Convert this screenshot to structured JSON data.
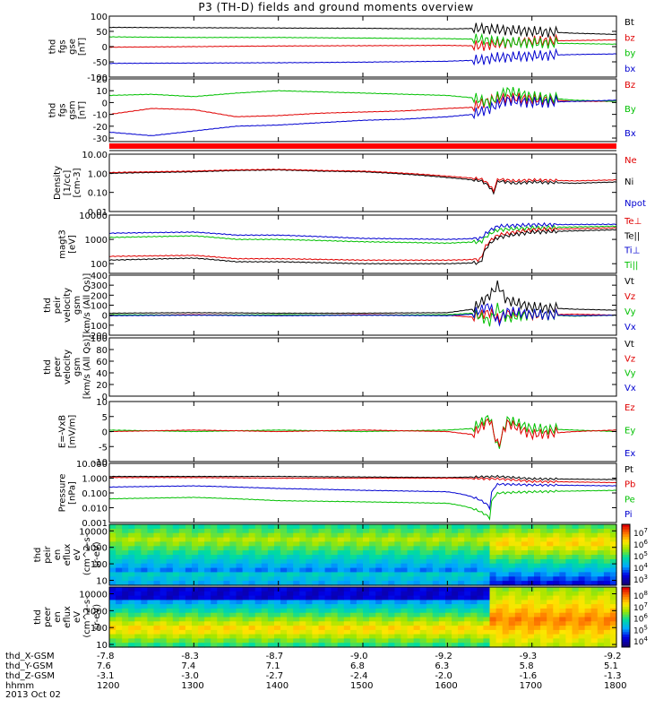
{
  "title": "P3 (TH-D) fields and ground moments overview",
  "date_label": "2013 Oct 02",
  "colors": {
    "black": "#000000",
    "red": "#e00000",
    "green": "#00c000",
    "blue": "#0000d0",
    "orbit_bar": "#ff0000"
  },
  "chart_data": [
    {
      "type": "line",
      "id": "fgs-gse",
      "ylabel": [
        "thd",
        "fgs",
        "gse",
        "[nT]"
      ],
      "yticks": [
        "100",
        "50",
        "0",
        "-50",
        "-100"
      ],
      "ylim": [
        -100,
        100
      ],
      "legend": [
        {
          "name": "Bt",
          "color": "#000000"
        },
        {
          "name": "bz",
          "color": "#e00000"
        },
        {
          "name": "by",
          "color": "#00c000"
        },
        {
          "name": "bx",
          "color": "#0000d0"
        }
      ],
      "series": [
        {
          "name": "Bt",
          "color": "#000000",
          "x": [
            12.0,
            13.0,
            14.0,
            15.0,
            16.0,
            16.4,
            16.6,
            17.0,
            17.5,
            18.0
          ],
          "y": [
            63,
            62,
            61,
            60,
            58,
            60,
            56,
            50,
            44,
            40
          ]
        },
        {
          "name": "bz",
          "color": "#e00000",
          "x": [
            12.0,
            13.0,
            14.0,
            15.0,
            16.0,
            16.4,
            16.6,
            17.0,
            17.5,
            18.0
          ],
          "y": [
            -2,
            0,
            2,
            3,
            4,
            2,
            10,
            18,
            20,
            22
          ]
        },
        {
          "name": "by",
          "color": "#00c000",
          "x": [
            12.0,
            13.0,
            14.0,
            15.0,
            16.0,
            16.4,
            16.6,
            17.0,
            17.5,
            18.0
          ],
          "y": [
            32,
            30,
            30,
            28,
            26,
            24,
            16,
            12,
            10,
            8
          ]
        },
        {
          "name": "bx",
          "color": "#0000d0",
          "x": [
            12.0,
            13.0,
            14.0,
            15.0,
            16.0,
            16.4,
            16.6,
            17.0,
            17.5,
            18.0
          ],
          "y": [
            -55,
            -54,
            -53,
            -51,
            -48,
            -44,
            -36,
            -30,
            -26,
            -24
          ]
        }
      ]
    },
    {
      "type": "line",
      "id": "fgs-gsm",
      "ylabel": [
        "thd",
        "fgs",
        "gsm",
        "[nT]"
      ],
      "yticks": [
        "20",
        "10",
        "0",
        "-10",
        "-20",
        "-30"
      ],
      "ylim": [
        -33,
        20
      ],
      "legend": [
        {
          "name": "Bz",
          "color": "#e00000"
        },
        {
          "name": "By",
          "color": "#00c000"
        },
        {
          "name": "Bx",
          "color": "#0000d0"
        }
      ],
      "series": [
        {
          "name": "Bz",
          "color": "#e00000",
          "x": [
            12.0,
            12.5,
            13.0,
            13.5,
            14.0,
            14.5,
            15.0,
            15.5,
            16.0,
            16.3,
            16.5,
            16.7,
            17.0,
            17.5,
            18.0
          ],
          "y": [
            -10,
            -5,
            -6,
            -12,
            -11,
            -9,
            -8,
            -7,
            -5,
            -4,
            2,
            4,
            3,
            1,
            1
          ]
        },
        {
          "name": "By",
          "color": "#00c000",
          "x": [
            12.0,
            12.5,
            13.0,
            13.5,
            14.0,
            14.5,
            15.0,
            15.5,
            16.0,
            16.3,
            16.5,
            16.7,
            17.0,
            17.5,
            18.0
          ],
          "y": [
            6,
            7,
            5,
            8,
            10,
            9,
            8,
            7,
            6,
            4,
            0,
            10,
            5,
            2,
            1
          ]
        },
        {
          "name": "Bx",
          "color": "#0000d0",
          "x": [
            12.0,
            12.5,
            13.0,
            13.5,
            14.0,
            14.5,
            15.0,
            15.5,
            16.0,
            16.3,
            16.5,
            16.7,
            17.0,
            17.5,
            18.0
          ],
          "y": [
            -25,
            -28,
            -24,
            -20,
            -19,
            -17,
            -15,
            -14,
            -12,
            -10,
            -5,
            2,
            0,
            1,
            2
          ]
        }
      ]
    },
    {
      "type": "line",
      "id": "density",
      "scale": "log",
      "ylabel": [
        "Density",
        "[1/cc]",
        "[cm-3]"
      ],
      "yticks": [
        "10.00",
        "1.00",
        "0.10",
        "0.01"
      ],
      "ylim": [
        0.01,
        10
      ],
      "legend": [
        {
          "name": "Ne",
          "color": "#e00000"
        },
        {
          "name": "Ni",
          "color": "#000000"
        },
        {
          "name": "Npot",
          "color": "#0000d0"
        }
      ],
      "series": [
        {
          "name": "Ni",
          "color": "#000000",
          "x": [
            12.0,
            12.5,
            13.0,
            13.5,
            14.0,
            14.5,
            15.0,
            15.5,
            16.0,
            16.4,
            16.55,
            16.6,
            16.8,
            17.0,
            17.5,
            18.0
          ],
          "y": [
            1.0,
            1.1,
            1.2,
            1.4,
            1.5,
            1.3,
            1.2,
            0.9,
            0.6,
            0.4,
            0.08,
            0.4,
            0.3,
            0.35,
            0.3,
            0.35
          ]
        },
        {
          "name": "Ne",
          "color": "#e00000",
          "x": [
            12.0,
            12.5,
            13.0,
            13.5,
            14.0,
            14.5,
            15.0,
            15.5,
            16.0,
            16.4,
            16.55,
            16.6,
            16.8,
            17.0,
            17.5,
            18.0
          ],
          "y": [
            1.1,
            1.2,
            1.3,
            1.5,
            1.6,
            1.4,
            1.3,
            1.0,
            0.7,
            0.5,
            0.1,
            0.5,
            0.4,
            0.45,
            0.4,
            0.45
          ]
        }
      ]
    },
    {
      "type": "line",
      "id": "temperature",
      "scale": "log",
      "ylabel": [
        "magt3",
        "[eV]"
      ],
      "yticks": [
        "10000",
        "1000",
        "100"
      ],
      "ylim": [
        40,
        10000
      ],
      "legend": [
        {
          "name": "Te⊥",
          "color": "#e00000"
        },
        {
          "name": "Te||",
          "color": "#000000"
        },
        {
          "name": "Ti⊥",
          "color": "#0000d0"
        },
        {
          "name": "Ti||",
          "color": "#00c000"
        }
      ],
      "series": [
        {
          "name": "Ti⊥",
          "color": "#0000d0",
          "x": [
            12.0,
            13.0,
            13.5,
            14.0,
            15.0,
            16.0,
            16.4,
            16.6,
            17.0,
            18.0
          ],
          "y": [
            1800,
            2000,
            1500,
            1500,
            1100,
            1000,
            1100,
            3500,
            4000,
            4200
          ]
        },
        {
          "name": "Ti||",
          "color": "#00c000",
          "x": [
            12.0,
            13.0,
            13.5,
            14.0,
            15.0,
            16.0,
            16.4,
            16.6,
            17.0,
            18.0
          ],
          "y": [
            1200,
            1400,
            1000,
            1000,
            800,
            700,
            800,
            2500,
            3000,
            3500
          ]
        },
        {
          "name": "Te⊥",
          "color": "#e00000",
          "x": [
            12.0,
            13.0,
            13.5,
            14.0,
            15.0,
            16.0,
            16.4,
            16.6,
            17.0,
            18.0
          ],
          "y": [
            200,
            220,
            160,
            160,
            140,
            140,
            150,
            1500,
            2500,
            3000
          ]
        },
        {
          "name": "Te||",
          "color": "#000000",
          "x": [
            12.0,
            13.0,
            13.5,
            14.0,
            15.0,
            16.0,
            16.4,
            16.6,
            17.0,
            18.0
          ],
          "y": [
            140,
            170,
            120,
            120,
            100,
            100,
            110,
            1200,
            2000,
            2500
          ]
        }
      ]
    },
    {
      "type": "line",
      "id": "peir-velocity",
      "ylabel": [
        "thd",
        "peir",
        "velocity",
        "gsm",
        "[km/s (All Qs)]"
      ],
      "yticks": [
        "400",
        "300",
        "200",
        "100",
        "0",
        "-100",
        "-200"
      ],
      "ylim": [
        -200,
        400
      ],
      "legend": [
        {
          "name": "Vt",
          "color": "#000000"
        },
        {
          "name": "Vz",
          "color": "#e00000"
        },
        {
          "name": "Vy",
          "color": "#00c000"
        },
        {
          "name": "Vx",
          "color": "#0000d0"
        }
      ],
      "series": [
        {
          "name": "Vt",
          "color": "#000000",
          "x": [
            12.0,
            13.0,
            14.0,
            15.0,
            16.0,
            16.3,
            16.5,
            16.6,
            16.7,
            17.0,
            17.5,
            18.0
          ],
          "y": [
            20,
            25,
            20,
            20,
            25,
            60,
            200,
            300,
            150,
            80,
            60,
            50
          ]
        },
        {
          "name": "Vz",
          "color": "#e00000",
          "x": [
            12.0,
            13.0,
            14.0,
            15.0,
            16.0,
            16.3,
            16.5,
            16.6,
            16.7,
            17.0,
            17.5,
            18.0
          ],
          "y": [
            0,
            5,
            0,
            5,
            0,
            -20,
            30,
            -40,
            20,
            0,
            10,
            0
          ]
        },
        {
          "name": "Vy",
          "color": "#00c000",
          "x": [
            12.0,
            13.0,
            14.0,
            15.0,
            16.0,
            16.3,
            16.5,
            16.6,
            16.7,
            17.0,
            17.5,
            18.0
          ],
          "y": [
            5,
            0,
            5,
            0,
            5,
            20,
            -60,
            80,
            -30,
            10,
            -10,
            0
          ]
        },
        {
          "name": "Vx",
          "color": "#0000d0",
          "x": [
            12.0,
            13.0,
            14.0,
            15.0,
            16.0,
            16.3,
            16.5,
            16.6,
            16.7,
            17.0,
            17.5,
            18.0
          ],
          "y": [
            -5,
            0,
            -5,
            0,
            -5,
            10,
            100,
            -80,
            40,
            10,
            -5,
            0
          ]
        }
      ]
    },
    {
      "type": "line",
      "id": "peer-velocity",
      "ylabel": [
        "thd",
        "peer",
        "velocity",
        "gsm",
        "[km/s (All Qs)]"
      ],
      "yticks": [
        "100",
        "80",
        "60",
        "40",
        "20",
        "0"
      ],
      "ylim": [
        0,
        100
      ],
      "legend": [
        {
          "name": "Vt",
          "color": "#000000"
        },
        {
          "name": "Vz",
          "color": "#e00000"
        },
        {
          "name": "Vy",
          "color": "#00c000"
        },
        {
          "name": "Vx",
          "color": "#0000d0"
        }
      ],
      "series": []
    },
    {
      "type": "line",
      "id": "efield",
      "ylabel": [
        "E=-VxB",
        "[mV/m]"
      ],
      "yticks": [
        "10",
        "5",
        "0",
        "-5",
        "-10"
      ],
      "ylim": [
        -10,
        10
      ],
      "legend": [
        {
          "name": "Ez",
          "color": "#e00000"
        },
        {
          "name": "Ey",
          "color": "#00c000"
        },
        {
          "name": "Ex",
          "color": "#0000d0"
        }
      ],
      "series": [
        {
          "name": "Ey",
          "color": "#00c000",
          "x": [
            12.0,
            13.0,
            14.0,
            15.0,
            16.0,
            16.3,
            16.5,
            16.6,
            16.7,
            17.0,
            17.5,
            18.0
          ],
          "y": [
            0.5,
            0,
            0.5,
            0,
            0.5,
            1,
            5,
            -6,
            4,
            1,
            0.5,
            0
          ]
        },
        {
          "name": "Ez",
          "color": "#e00000",
          "x": [
            12.0,
            13.0,
            14.0,
            15.0,
            16.0,
            16.3,
            16.5,
            16.6,
            16.7,
            17.0,
            17.5,
            18.0
          ],
          "y": [
            0,
            0.5,
            0,
            0.5,
            0,
            -1,
            4,
            -5,
            3,
            -1,
            0,
            0.5
          ]
        }
      ]
    },
    {
      "type": "line",
      "id": "pressure",
      "scale": "log",
      "ylabel": [
        "Pressure",
        "[nPa]"
      ],
      "yticks": [
        "10.000",
        "1.000",
        "0.100",
        "0.010",
        "0.001"
      ],
      "ylim": [
        0.001,
        10
      ],
      "legend": [
        {
          "name": "Pt",
          "color": "#000000"
        },
        {
          "name": "Pb",
          "color": "#e00000"
        },
        {
          "name": "Pe",
          "color": "#00c000"
        },
        {
          "name": "Pi",
          "color": "#0000d0"
        }
      ],
      "series": [
        {
          "name": "Pt",
          "color": "#000000",
          "x": [
            12.0,
            13.0,
            14.0,
            15.0,
            16.0,
            16.6,
            17.0,
            18.0
          ],
          "y": [
            1.3,
            1.3,
            1.3,
            1.2,
            1.1,
            1.3,
            0.9,
            0.8
          ]
        },
        {
          "name": "Pb",
          "color": "#e00000",
          "x": [
            12.0,
            13.0,
            14.0,
            15.0,
            16.0,
            16.6,
            17.0,
            18.0
          ],
          "y": [
            1.1,
            1.1,
            1.0,
            1.0,
            1.0,
            0.9,
            0.6,
            0.5
          ]
        },
        {
          "name": "Pi",
          "color": "#0000d0",
          "x": [
            12.0,
            13.0,
            14.0,
            15.0,
            16.0,
            16.4,
            16.5,
            16.6,
            17.0,
            18.0
          ],
          "y": [
            0.25,
            0.3,
            0.2,
            0.15,
            0.12,
            0.03,
            0.01,
            0.4,
            0.35,
            0.3
          ]
        },
        {
          "name": "Pe",
          "color": "#00c000",
          "x": [
            12.0,
            13.0,
            14.0,
            15.0,
            16.0,
            16.4,
            16.5,
            16.6,
            17.0,
            18.0
          ],
          "y": [
            0.04,
            0.05,
            0.03,
            0.025,
            0.02,
            0.005,
            0.002,
            0.1,
            0.12,
            0.15
          ]
        }
      ]
    },
    {
      "type": "heatmap",
      "id": "peir-spectrogram",
      "scale": "log",
      "ylabel": [
        "thd",
        "peir",
        "en",
        "eflux",
        "eV",
        "(cm^2-s-",
        "sr-eV)"
      ],
      "yticks": [
        "10000",
        "1000",
        "100",
        "10"
      ],
      "ylim": [
        5,
        25000
      ],
      "colorbar_ticks": [
        "10^7",
        "10^6",
        "10^5",
        "10^4",
        "10^3"
      ]
    },
    {
      "type": "heatmap",
      "id": "peer-spectrogram",
      "scale": "log",
      "ylabel": [
        "thd",
        "peer",
        "en",
        "eflux",
        "eV",
        "(cm^2-s-",
        "sr-eV)"
      ],
      "yticks": [
        "10000",
        "1000",
        "100",
        "10"
      ],
      "ylim": [
        7,
        25000
      ],
      "colorbar_ticks": [
        "10^8",
        "10^7",
        "10^6",
        "10^5",
        "10^4"
      ]
    }
  ],
  "x_axis": {
    "range_hours": [
      12.0,
      18.0
    ],
    "tick_hours": [
      12.0,
      13.0,
      14.0,
      15.0,
      16.0,
      17.0,
      18.0
    ],
    "rows": [
      {
        "label": "thd_X-GSM",
        "values": [
          "-7.8",
          "-8.3",
          "-8.7",
          "-9.0",
          "-9.2",
          "-9.3",
          "-9.2"
        ]
      },
      {
        "label": "thd_Y-GSM",
        "values": [
          "7.6",
          "7.4",
          "7.1",
          "6.8",
          "6.3",
          "5.8",
          "5.1"
        ]
      },
      {
        "label": "thd_Z-GSM",
        "values": [
          "-3.1",
          "-3.0",
          "-2.7",
          "-2.4",
          "-2.0",
          "-1.6",
          "-1.3"
        ]
      },
      {
        "label": "hhmm",
        "values": [
          "1200",
          "1300",
          "1400",
          "1500",
          "1600",
          "1700",
          "1800"
        ]
      }
    ]
  }
}
